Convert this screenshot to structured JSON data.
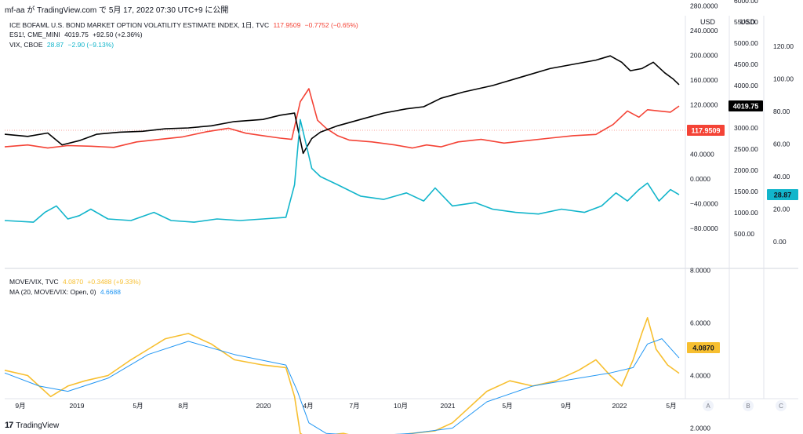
{
  "header": {
    "text": "mf-aa が TradingView.com で 5月 17, 2022 07:30 UTC+9 に公開"
  },
  "footer": {
    "logo": "17",
    "brand": "TradingView"
  },
  "legend": {
    "move": {
      "name": "ICE BOFAML U.S. BOND MARKET OPTION VOLATILITY ESTIMATE INDEX, 1日, TVC",
      "value": "117.9509",
      "change": "−0.7752 (−0.65%)"
    },
    "es": {
      "name": "ES1!, CME_MINI",
      "value": "4019.75",
      "change": "+92.50 (+2.36%)"
    },
    "vix": {
      "name": "VIX, CBOE",
      "value": "28.87",
      "change": "−2.90 (−9.13%)"
    },
    "ratio": {
      "name": "MOVE/VIX, TVC",
      "value": "4.0870",
      "change": "+0.3488 (+9.33%)"
    },
    "ma": {
      "name": "MA (20, MOVE/VIX: Open, 0)",
      "value": "4.6688"
    }
  },
  "colors": {
    "move": "#f44336",
    "es": "#000000",
    "vix": "#12b5cb",
    "ratio": "#f7bf30",
    "ma": "#2196f3"
  },
  "chart_data": {
    "type": "line",
    "x_ticks": [
      "9月",
      "2019",
      "5月",
      "8月",
      "2020",
      "4月",
      "7月",
      "10月",
      "2021",
      "5月",
      "9月",
      "2022",
      "5月"
    ],
    "price_scale_labels": {
      "axisA": "USD",
      "axisB": "USD"
    },
    "axis_letters": [
      "A",
      "B",
      "C"
    ],
    "axis_A_ticks": [
      "280.0000",
      "240.0000",
      "200.0000",
      "160.0000",
      "120.0000",
      "80.0000",
      "40.0000",
      "0.0000",
      "−40.0000",
      "−80.0000"
    ],
    "axis_B_ticks": [
      "6000.00",
      "5500.00",
      "5000.00",
      "4500.00",
      "4000.00",
      "3500.00",
      "3000.00",
      "2500.00",
      "2000.00",
      "1500.00",
      "1000.00",
      "500.00"
    ],
    "axis_C_ticks": [
      "120.00",
      "100.00",
      "80.00",
      "60.00",
      "40.00",
      "20.00",
      "0.00"
    ],
    "lower_axis_ticks": [
      "8.0000",
      "6.0000",
      "4.0000",
      "2.0000"
    ],
    "last_values": {
      "move": "117.9509",
      "es": "4019.75",
      "vix": "28.87",
      "ratio": "4.0870"
    },
    "series": [
      {
        "name": "MOVE",
        "key": "move",
        "axis": "A",
        "points": [
          [
            0,
            52
          ],
          [
            8,
            55
          ],
          [
            15,
            50
          ],
          [
            22,
            54
          ],
          [
            30,
            53
          ],
          [
            38,
            51
          ],
          [
            46,
            60
          ],
          [
            54,
            64
          ],
          [
            62,
            68
          ],
          [
            70,
            76
          ],
          [
            78,
            82
          ],
          [
            84,
            74
          ],
          [
            90,
            70
          ],
          [
            96,
            66
          ],
          [
            100,
            64
          ],
          [
            103,
            125
          ],
          [
            106,
            146
          ],
          [
            109,
            95
          ],
          [
            112,
            82
          ],
          [
            116,
            70
          ],
          [
            120,
            63
          ],
          [
            128,
            60
          ],
          [
            136,
            55
          ],
          [
            142,
            50
          ],
          [
            147,
            55
          ],
          [
            152,
            52
          ],
          [
            158,
            60
          ],
          [
            166,
            64
          ],
          [
            174,
            58
          ],
          [
            182,
            62
          ],
          [
            190,
            66
          ],
          [
            198,
            70
          ],
          [
            206,
            72
          ],
          [
            212,
            88
          ],
          [
            217,
            110
          ],
          [
            221,
            100
          ],
          [
            224,
            112
          ],
          [
            228,
            110
          ],
          [
            232,
            108
          ],
          [
            235,
            117.95
          ]
        ]
      },
      {
        "name": "ES",
        "key": "es",
        "axis": "B",
        "points": [
          [
            0,
            2850
          ],
          [
            8,
            2800
          ],
          [
            15,
            2880
          ],
          [
            20,
            2600
          ],
          [
            26,
            2700
          ],
          [
            32,
            2850
          ],
          [
            40,
            2900
          ],
          [
            48,
            2920
          ],
          [
            56,
            2980
          ],
          [
            64,
            3000
          ],
          [
            72,
            3050
          ],
          [
            80,
            3150
          ],
          [
            90,
            3200
          ],
          [
            96,
            3300
          ],
          [
            101,
            3350
          ],
          [
            104,
            2400
          ],
          [
            107,
            2750
          ],
          [
            110,
            2900
          ],
          [
            116,
            3050
          ],
          [
            124,
            3200
          ],
          [
            132,
            3350
          ],
          [
            140,
            3450
          ],
          [
            146,
            3500
          ],
          [
            152,
            3700
          ],
          [
            160,
            3850
          ],
          [
            170,
            4000
          ],
          [
            180,
            4200
          ],
          [
            190,
            4400
          ],
          [
            198,
            4500
          ],
          [
            206,
            4600
          ],
          [
            211,
            4700
          ],
          [
            215,
            4550
          ],
          [
            218,
            4350
          ],
          [
            222,
            4400
          ],
          [
            226,
            4550
          ],
          [
            230,
            4300
          ],
          [
            233,
            4150
          ],
          [
            235,
            4019.75
          ]
        ]
      },
      {
        "name": "VIX",
        "key": "vix",
        "axis": "C",
        "points": [
          [
            0,
            13
          ],
          [
            10,
            12
          ],
          [
            14,
            18
          ],
          [
            18,
            22
          ],
          [
            22,
            14
          ],
          [
            26,
            16
          ],
          [
            30,
            20
          ],
          [
            36,
            14
          ],
          [
            44,
            13
          ],
          [
            52,
            18
          ],
          [
            58,
            13
          ],
          [
            66,
            12
          ],
          [
            74,
            14
          ],
          [
            82,
            13
          ],
          [
            90,
            14
          ],
          [
            98,
            15
          ],
          [
            101,
            35
          ],
          [
            103,
            75
          ],
          [
            105,
            60
          ],
          [
            107,
            45
          ],
          [
            110,
            40
          ],
          [
            116,
            35
          ],
          [
            124,
            28
          ],
          [
            132,
            26
          ],
          [
            140,
            30
          ],
          [
            146,
            25
          ],
          [
            150,
            33
          ],
          [
            156,
            22
          ],
          [
            164,
            24
          ],
          [
            170,
            20
          ],
          [
            178,
            18
          ],
          [
            186,
            17
          ],
          [
            194,
            20
          ],
          [
            202,
            18
          ],
          [
            208,
            22
          ],
          [
            213,
            30
          ],
          [
            217,
            25
          ],
          [
            221,
            32
          ],
          [
            224,
            36
          ],
          [
            228,
            25
          ],
          [
            232,
            32
          ],
          [
            235,
            28.87
          ]
        ]
      },
      {
        "name": "MOVE/VIX",
        "key": "ratio",
        "axis": "lower",
        "points": [
          [
            0,
            4.2
          ],
          [
            8,
            4.0
          ],
          [
            12,
            3.6
          ],
          [
            16,
            3.2
          ],
          [
            22,
            3.6
          ],
          [
            28,
            3.8
          ],
          [
            36,
            4.0
          ],
          [
            44,
            4.6
          ],
          [
            50,
            5.0
          ],
          [
            56,
            5.4
          ],
          [
            64,
            5.6
          ],
          [
            72,
            5.2
          ],
          [
            80,
            4.6
          ],
          [
            90,
            4.4
          ],
          [
            98,
            4.3
          ],
          [
            101,
            3.2
          ],
          [
            103,
            1.8
          ],
          [
            106,
            1.6
          ],
          [
            110,
            1.7
          ],
          [
            118,
            1.8
          ],
          [
            126,
            1.6
          ],
          [
            134,
            1.7
          ],
          [
            142,
            1.8
          ],
          [
            150,
            1.9
          ],
          [
            156,
            2.2
          ],
          [
            162,
            2.8
          ],
          [
            168,
            3.4
          ],
          [
            176,
            3.8
          ],
          [
            184,
            3.6
          ],
          [
            192,
            3.8
          ],
          [
            200,
            4.2
          ],
          [
            206,
            4.6
          ],
          [
            211,
            4.0
          ],
          [
            215,
            3.6
          ],
          [
            219,
            4.6
          ],
          [
            222,
            5.6
          ],
          [
            224,
            6.2
          ],
          [
            227,
            5.0
          ],
          [
            231,
            4.4
          ],
          [
            235,
            4.087
          ]
        ]
      },
      {
        "name": "MA",
        "key": "ma",
        "axis": "lower",
        "points": [
          [
            0,
            4.1
          ],
          [
            12,
            3.6
          ],
          [
            22,
            3.4
          ],
          [
            36,
            3.9
          ],
          [
            50,
            4.8
          ],
          [
            64,
            5.3
          ],
          [
            80,
            4.8
          ],
          [
            98,
            4.4
          ],
          [
            102,
            3.4
          ],
          [
            106,
            2.2
          ],
          [
            112,
            1.8
          ],
          [
            126,
            1.7
          ],
          [
            142,
            1.8
          ],
          [
            156,
            2.0
          ],
          [
            168,
            3.0
          ],
          [
            184,
            3.6
          ],
          [
            200,
            3.9
          ],
          [
            211,
            4.1
          ],
          [
            219,
            4.3
          ],
          [
            224,
            5.2
          ],
          [
            229,
            5.4
          ],
          [
            235,
            4.67
          ]
        ]
      }
    ]
  }
}
